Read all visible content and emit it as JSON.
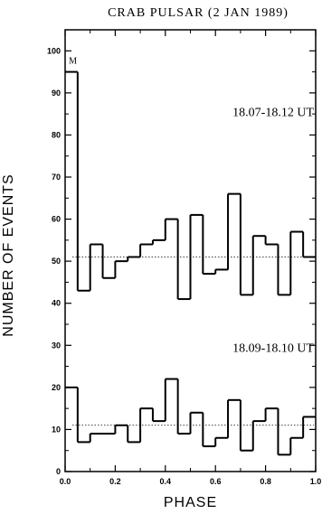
{
  "chart_data": {
    "type": "line",
    "title": "CRAB PULSAR (2 JAN 1989)",
    "xlabel": "PHASE",
    "ylabel": "NUMBER OF EVENTS",
    "xlim": [
      0.0,
      1.0
    ],
    "ylim": [
      0,
      105
    ],
    "x_ticks": [
      "0.0",
      "0.2",
      "0.4",
      "0.6",
      "0.8",
      "1.0"
    ],
    "x_tick_values": [
      0.0,
      0.2,
      0.4,
      0.6,
      0.8,
      1.0
    ],
    "y_ticks": [
      "0",
      "10",
      "20",
      "30",
      "40",
      "50",
      "60",
      "70",
      "80",
      "90",
      "100"
    ],
    "y_tick_values": [
      0,
      10,
      20,
      30,
      40,
      50,
      60,
      70,
      80,
      90,
      100
    ],
    "bin_edges": [
      0.0,
      0.05,
      0.1,
      0.15,
      0.2,
      0.25,
      0.3,
      0.35,
      0.4,
      0.45,
      0.5,
      0.55,
      0.6,
      0.65,
      0.7,
      0.75,
      0.8,
      0.85,
      0.9,
      0.95,
      1.0
    ],
    "series": [
      {
        "name": "18.07-18.12 UT",
        "values": [
          95,
          43,
          54,
          46,
          50,
          51,
          54,
          55,
          60,
          41,
          61,
          47,
          48,
          66,
          42,
          56,
          54,
          42,
          57,
          51
        ],
        "mean_level": 51
      },
      {
        "name": "18.09-18.10 UT",
        "values": [
          20,
          7,
          9,
          9,
          11,
          7,
          15,
          12,
          22,
          9,
          14,
          6,
          8,
          17,
          5,
          12,
          15,
          4,
          8,
          13
        ],
        "mean_level": 11
      }
    ],
    "annotations": [
      {
        "text": "M"
      },
      {
        "text": "18.07-18.12 UT"
      },
      {
        "text": "18.09-18.10 UT"
      }
    ],
    "grid": false,
    "legend": "none"
  }
}
